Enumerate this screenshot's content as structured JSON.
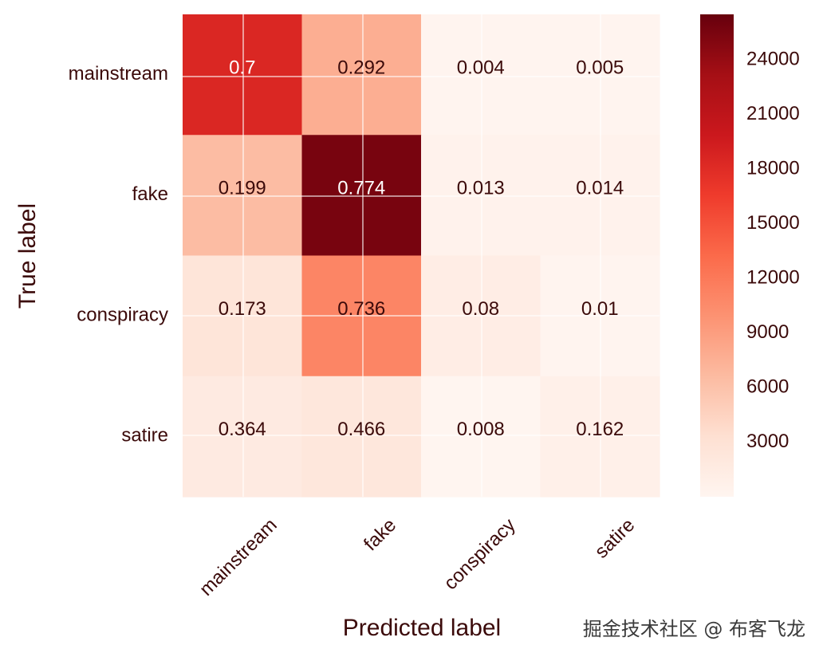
{
  "chart_data": {
    "type": "heatmap",
    "title": "",
    "xlabel": "Predicted label",
    "ylabel": "True label",
    "x_categories": [
      "mainstream",
      "fake",
      "conspiracy",
      "satire"
    ],
    "y_categories": [
      "mainstream",
      "fake",
      "conspiracy",
      "satire"
    ],
    "cell_labels": [
      [
        "0.7",
        "0.292",
        "0.004",
        "0.005"
      ],
      [
        "0.199",
        "0.774",
        "0.013",
        "0.014"
      ],
      [
        "0.173",
        "0.736",
        "0.08",
        "0.01"
      ],
      [
        "0.364",
        "0.466",
        "0.008",
        "0.162"
      ]
    ],
    "counts": [
      [
        18500,
        7700,
        110,
        130
      ],
      [
        6500,
        25600,
        430,
        460
      ],
      [
        2500,
        11000,
        1200,
        150
      ],
      [
        1700,
        2200,
        40,
        760
      ]
    ],
    "colorbar": {
      "colormap": "Reds",
      "min": 0,
      "max": 26500,
      "ticks": [
        3000,
        6000,
        9000,
        12000,
        15000,
        18000,
        21000,
        24000
      ]
    },
    "grid": true
  },
  "watermark": "掘金技术社区 @ 布客飞龙"
}
